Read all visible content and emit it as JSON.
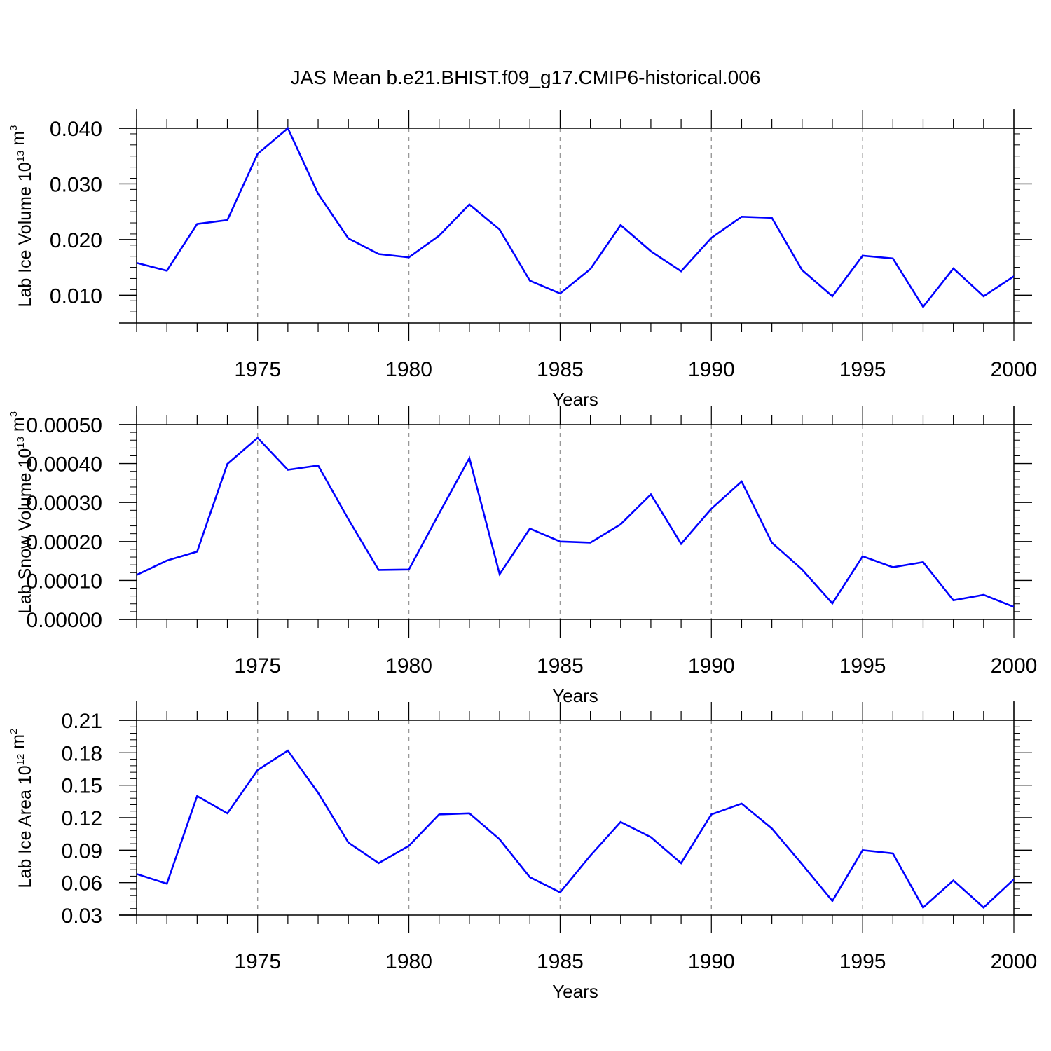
{
  "title": "JAS Mean b.e21.BHIST.f09_g17.CMIP6-historical.006",
  "colors": {
    "series": "#0000ff",
    "frame": "#000000",
    "gridline": "#999999",
    "background": "#ffffff"
  },
  "chart_data": [
    {
      "type": "line",
      "xlabel": "Years",
      "ylabel_parts": [
        {
          "text": "Lab Ice Volume 10",
          "sup": false
        },
        {
          "text": "13",
          "sup": true
        },
        {
          "text": " m",
          "sup": false
        },
        {
          "text": "3",
          "sup": true
        }
      ],
      "xlim": [
        1971,
        2000
      ],
      "ylim": [
        0.005,
        0.04
      ],
      "xticks": [
        1975,
        1980,
        1985,
        1990,
        1995,
        2000
      ],
      "xtick_labels": [
        "1975",
        "1980",
        "1985",
        "1990",
        "1995",
        "2000"
      ],
      "yticks": [
        0.01,
        0.02,
        0.03,
        0.04
      ],
      "ytick_labels": [
        "0.010",
        "0.020",
        "0.030",
        "0.040"
      ],
      "grid": "vertical dashed at labeled years",
      "x": [
        1971,
        1972,
        1973,
        1974,
        1975,
        1976,
        1977,
        1978,
        1979,
        1980,
        1981,
        1982,
        1983,
        1984,
        1985,
        1986,
        1987,
        1988,
        1989,
        1990,
        1991,
        1992,
        1993,
        1994,
        1995,
        1996,
        1997,
        1998,
        1999,
        2000
      ],
      "values": [
        0.0158,
        0.0144,
        0.0228,
        0.0235,
        0.0354,
        0.04,
        0.0282,
        0.0202,
        0.0174,
        0.0168,
        0.0207,
        0.0263,
        0.0218,
        0.0126,
        0.0103,
        0.0147,
        0.0226,
        0.0179,
        0.0143,
        0.0203,
        0.0241,
        0.0239,
        0.0145,
        0.0098,
        0.0171,
        0.0166,
        0.0079,
        0.0148,
        0.0098,
        0.0134
      ]
    },
    {
      "type": "line",
      "xlabel": "Years",
      "ylabel_parts": [
        {
          "text": "Lab Snow Volume 10",
          "sup": false
        },
        {
          "text": "13",
          "sup": true
        },
        {
          "text": " m",
          "sup": false
        },
        {
          "text": "3",
          "sup": true
        }
      ],
      "xlim": [
        1971,
        2000
      ],
      "ylim": [
        0,
        0.0005
      ],
      "xticks": [
        1975,
        1980,
        1985,
        1990,
        1995,
        2000
      ],
      "xtick_labels": [
        "1975",
        "1980",
        "1985",
        "1990",
        "1995",
        "2000"
      ],
      "yticks": [
        0,
        0.0001,
        0.0002,
        0.0003,
        0.0004,
        0.0005
      ],
      "ytick_labels": [
        "0.00000",
        "0.00010",
        "0.00020",
        "0.00030",
        "0.00040",
        "0.00050"
      ],
      "grid": "vertical dashed at labeled years",
      "x": [
        1971,
        1972,
        1973,
        1974,
        1975,
        1976,
        1977,
        1978,
        1979,
        1980,
        1981,
        1982,
        1983,
        1984,
        1985,
        1986,
        1987,
        1988,
        1989,
        1990,
        1991,
        1992,
        1993,
        1994,
        1995,
        1996,
        1997,
        1998,
        1999,
        2000
      ],
      "values": [
        0.000114,
        0.000151,
        0.000174,
        0.000399,
        0.000466,
        0.000384,
        0.000395,
        0.000257,
        0.000127,
        0.000128,
        0.000272,
        0.000414,
        0.000116,
        0.000233,
        0.0002,
        0.000197,
        0.000244,
        0.000321,
        0.000194,
        0.000284,
        0.000354,
        0.000197,
        0.000128,
        4.1e-05,
        0.000162,
        0.000134,
        0.000147,
        4.9e-05,
        6.3e-05,
        3.2e-05
      ]
    },
    {
      "type": "line",
      "xlabel": "Years",
      "ylabel_parts": [
        {
          "text": "Lab Ice Area 10",
          "sup": false
        },
        {
          "text": "12",
          "sup": true
        },
        {
          "text": " m",
          "sup": false
        },
        {
          "text": "2",
          "sup": true
        }
      ],
      "xlim": [
        1971,
        2000
      ],
      "ylim": [
        0.03,
        0.21
      ],
      "xticks": [
        1975,
        1980,
        1985,
        1990,
        1995,
        2000
      ],
      "xtick_labels": [
        "1975",
        "1980",
        "1985",
        "1990",
        "1995",
        "2000"
      ],
      "yticks": [
        0.03,
        0.06,
        0.09,
        0.12,
        0.15,
        0.18,
        0.21
      ],
      "ytick_labels": [
        "0.03",
        "0.06",
        "0.09",
        "0.12",
        "0.15",
        "0.18",
        "0.21"
      ],
      "grid": "vertical dashed at labeled years",
      "x": [
        1971,
        1972,
        1973,
        1974,
        1975,
        1976,
        1977,
        1978,
        1979,
        1980,
        1981,
        1982,
        1983,
        1984,
        1985,
        1986,
        1987,
        1988,
        1989,
        1990,
        1991,
        1992,
        1993,
        1994,
        1995,
        1996,
        1997,
        1998,
        1999,
        2000
      ],
      "values": [
        0.068,
        0.059,
        0.14,
        0.124,
        0.164,
        0.182,
        0.143,
        0.097,
        0.078,
        0.094,
        0.123,
        0.124,
        0.1,
        0.065,
        0.051,
        0.085,
        0.116,
        0.102,
        0.078,
        0.123,
        0.133,
        0.11,
        0.077,
        0.043,
        0.09,
        0.087,
        0.037,
        0.062,
        0.037,
        0.063
      ]
    }
  ]
}
